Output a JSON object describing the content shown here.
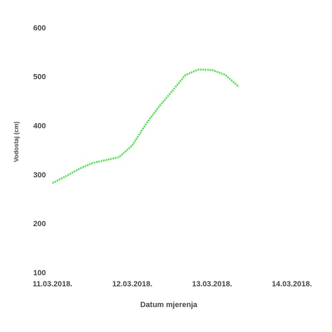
{
  "chart_data": {
    "type": "line",
    "x_label": "Datum mjerenja",
    "y_label": "Vodostaj (cm)",
    "x": [
      "2018-03-11T00:00",
      "2018-03-11T04:00",
      "2018-03-11T08:00",
      "2018-03-11T12:00",
      "2018-03-11T16:00",
      "2018-03-11T20:00",
      "2018-03-12T00:00",
      "2018-03-12T04:00",
      "2018-03-12T08:00",
      "2018-03-12T12:00",
      "2018-03-12T16:00",
      "2018-03-12T20:00",
      "2018-03-13T00:00",
      "2018-03-13T04:00",
      "2018-03-13T08:00"
    ],
    "series": [
      {
        "name": "Vodostaj",
        "color": "#22ee22",
        "values": [
          284,
          298,
          313,
          325,
          331,
          337,
          361,
          404,
          440,
          472,
          505,
          516,
          515,
          505,
          481
        ]
      }
    ],
    "xlim": [
      "2018-03-11T00:00",
      "2018-03-14T00:00"
    ],
    "xticks": [
      {
        "value": "2018-03-11T00:00",
        "label": "11.03.2018."
      },
      {
        "value": "2018-03-12T00:00",
        "label": "12.03.2018."
      },
      {
        "value": "2018-03-13T00:00",
        "label": "13.03.2018."
      },
      {
        "value": "2018-03-14T00:00",
        "label": "14.03.2018."
      }
    ],
    "ylim": [
      100,
      600
    ],
    "yticks": [
      100,
      200,
      300,
      400,
      500,
      600
    ]
  }
}
